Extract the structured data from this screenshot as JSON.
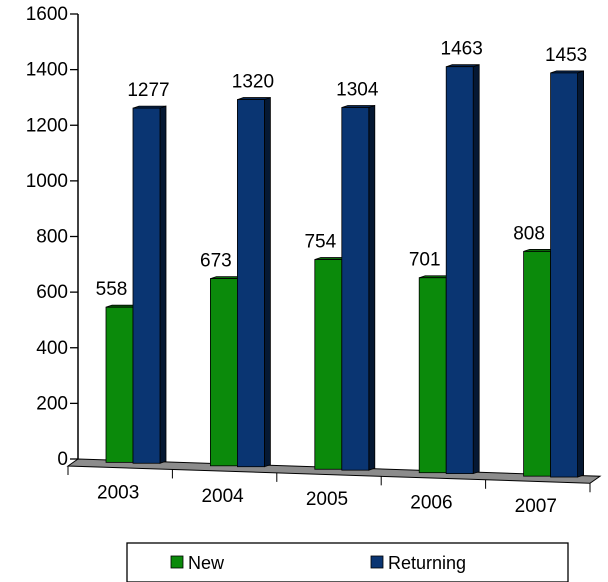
{
  "chart_data": {
    "type": "bar",
    "categories": [
      "2003",
      "2004",
      "2005",
      "2006",
      "2007"
    ],
    "series": [
      {
        "name": "New",
        "values": [
          558,
          673,
          754,
          701,
          808
        ],
        "color": "#0b8a0b"
      },
      {
        "name": "Returning",
        "values": [
          1277,
          1320,
          1304,
          1463,
          1453
        ],
        "color": "#0a3572"
      }
    ],
    "ylim": [
      0,
      1600
    ],
    "yticks": [
      0,
      200,
      400,
      600,
      800,
      1000,
      1200,
      1400,
      1600
    ],
    "data_labels": true,
    "grid": false,
    "legend": {
      "position": "bottom",
      "labels": [
        "New",
        "Returning"
      ]
    },
    "style": "3d-bar"
  }
}
